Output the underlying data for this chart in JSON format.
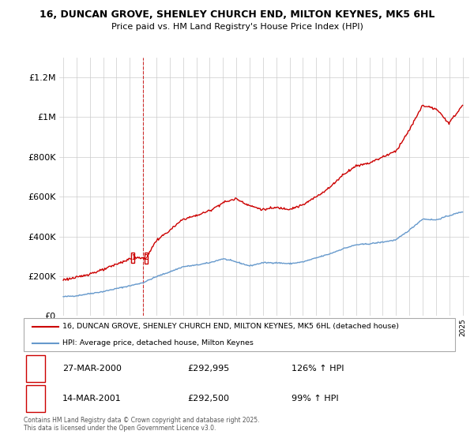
{
  "title": "16, DUNCAN GROVE, SHENLEY CHURCH END, MILTON KEYNES, MK5 6HL",
  "subtitle": "Price paid vs. HM Land Registry's House Price Index (HPI)",
  "legend_line1": "16, DUNCAN GROVE, SHENLEY CHURCH END, MILTON KEYNES, MK5 6HL (detached house)",
  "legend_line2": "HPI: Average price, detached house, Milton Keynes",
  "transaction1_date": "27-MAR-2000",
  "transaction1_price": "£292,995",
  "transaction1_hpi": "126% ↑ HPI",
  "transaction2_date": "14-MAR-2001",
  "transaction2_price": "£292,500",
  "transaction2_hpi": "99% ↑ HPI",
  "copyright": "Contains HM Land Registry data © Crown copyright and database right 2025.\nThis data is licensed under the Open Government Licence v3.0.",
  "hpi_line_color": "#6699cc",
  "price_line_color": "#cc0000",
  "marker_box_color": "#cc0000",
  "background_color": "#ffffff",
  "grid_color": "#cccccc",
  "ylim_min": 0,
  "ylim_max": 1300000,
  "transaction1_x": 2000.24,
  "transaction1_y": 292995,
  "transaction2_x": 2001.21,
  "transaction2_y": 292500,
  "vline_x": 2001.0,
  "yticks": [
    0,
    200000,
    400000,
    600000,
    800000,
    1000000,
    1200000
  ],
  "ytick_labels": [
    "£0",
    "£200K",
    "£400K",
    "£600K",
    "£800K",
    "£1M",
    "£1.2M"
  ],
  "xlim_min": 1994.7,
  "xlim_max": 2025.5
}
